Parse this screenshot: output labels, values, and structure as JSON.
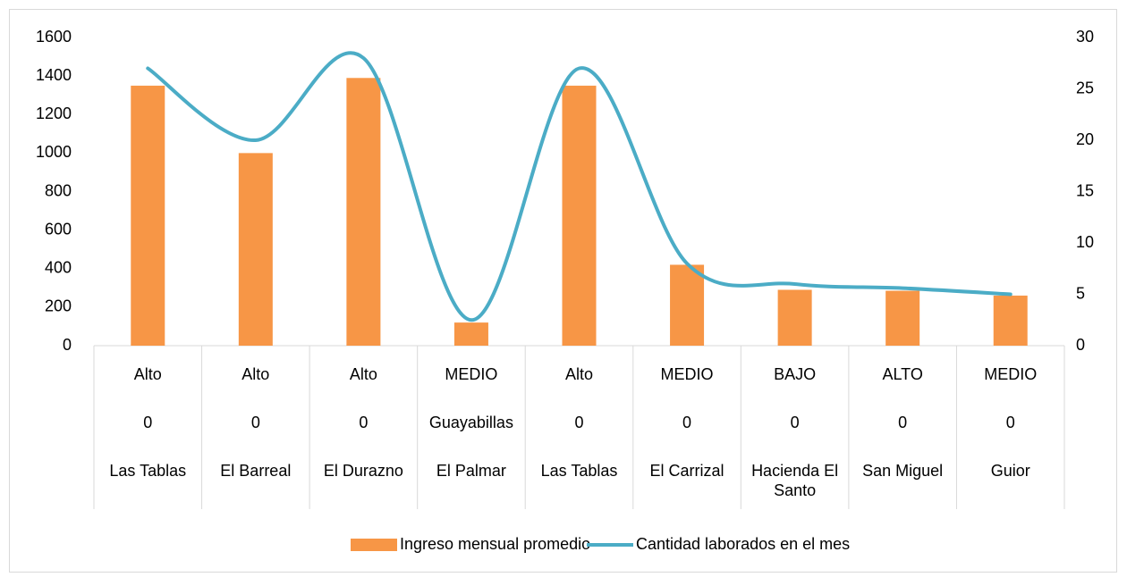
{
  "chart_data": {
    "type": "bar-line",
    "categories": [
      [
        "Alto",
        "0",
        "Las Tablas"
      ],
      [
        "Alto",
        "0",
        "El Barreal"
      ],
      [
        "Alto",
        "0",
        "El Durazno"
      ],
      [
        "MEDIO",
        "Guayabillas",
        "El Palmar"
      ],
      [
        "Alto",
        "0",
        "Las Tablas"
      ],
      [
        "MEDIO",
        "0",
        "El Carrizal"
      ],
      [
        "BAJO",
        "0",
        "Hacienda El Santo"
      ],
      [
        "ALTO",
        "0",
        "San Miguel"
      ],
      [
        "MEDIO",
        "0",
        "Guior"
      ]
    ],
    "series": [
      {
        "name": "Ingreso mensual promedio",
        "type": "bar",
        "color": "#f79646",
        "values": [
          1350,
          1000,
          1390,
          120,
          1350,
          420,
          290,
          285,
          260
        ]
      },
      {
        "name": "Cantidad laborados en el mes",
        "type": "line",
        "axis": "y2",
        "color": "#4bacc6",
        "smooth": true,
        "values": [
          27,
          20,
          28,
          2.5,
          27,
          8,
          6,
          5.6,
          5
        ]
      }
    ],
    "ylim": [
      0,
      1600
    ],
    "yticks": [
      0,
      200,
      400,
      600,
      800,
      1000,
      1200,
      1400,
      1600
    ],
    "y2lim": [
      0,
      30
    ],
    "y2ticks": [
      0,
      5,
      10,
      15,
      20,
      25,
      30
    ],
    "legend": "bottom"
  }
}
